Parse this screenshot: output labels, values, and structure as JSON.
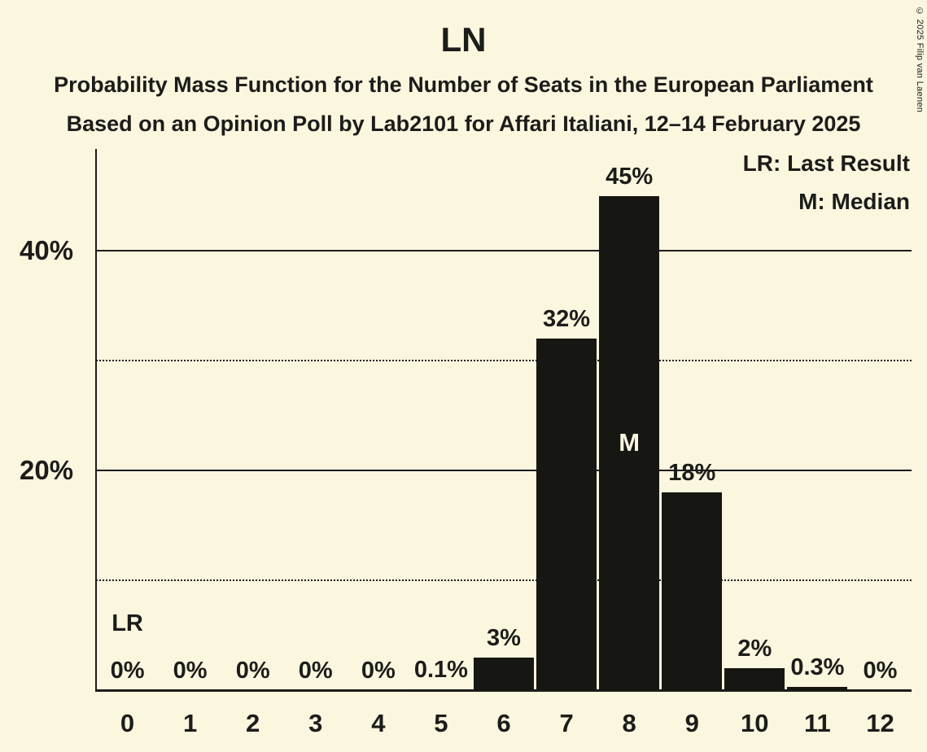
{
  "title": "LN",
  "subtitle1": "Probability Mass Function for the Number of Seats in the European Parliament",
  "subtitle2": "Based on an Opinion Poll by Lab2101 for Affari Italiani, 12–14 February 2025",
  "legend": {
    "lr": "LR: Last Result",
    "m": "M: Median"
  },
  "copyright": "© 2025 Filip van Laenen",
  "colors": {
    "background": "#FBF6DE",
    "bar": "#161613",
    "text": "#1C1C1A"
  },
  "chart_data": {
    "type": "bar",
    "title": "LN",
    "xlabel": "Number of Seats",
    "ylabel": "Probability",
    "categories": [
      "0",
      "1",
      "2",
      "3",
      "4",
      "5",
      "6",
      "7",
      "8",
      "9",
      "10",
      "11",
      "12"
    ],
    "values": [
      0,
      0,
      0,
      0,
      0,
      0.1,
      3,
      32,
      45,
      18,
      2,
      0.3,
      0
    ],
    "labels": [
      "0%",
      "0%",
      "0%",
      "0%",
      "0%",
      "0.1%",
      "3%",
      "32%",
      "45%",
      "18%",
      "2%",
      "0.3%",
      "0%"
    ],
    "ylim": [
      0,
      49
    ],
    "grid": true,
    "legend_position": "top-right",
    "yticks": [
      {
        "value": 10,
        "label": "",
        "style": "dotted"
      },
      {
        "value": 20,
        "label": "20%",
        "style": "solid"
      },
      {
        "value": 30,
        "label": "",
        "style": "dotted"
      },
      {
        "value": 40,
        "label": "40%",
        "style": "solid"
      }
    ],
    "annotations": {
      "last_result_index": 0,
      "last_result_label": "LR",
      "median_index": 8,
      "median_label": "M"
    }
  }
}
